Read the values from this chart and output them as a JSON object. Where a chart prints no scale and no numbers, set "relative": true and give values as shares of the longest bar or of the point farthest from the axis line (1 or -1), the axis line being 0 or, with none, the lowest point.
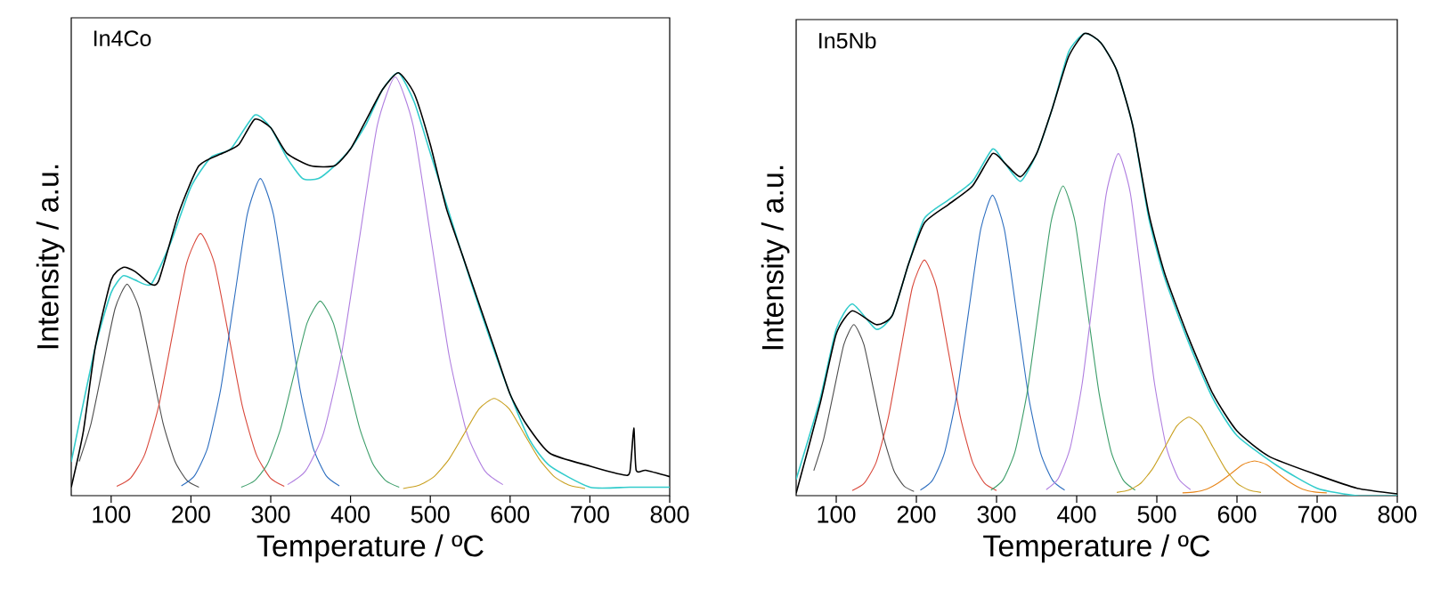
{
  "chart_data": [
    {
      "type": "line",
      "title": "In4Co",
      "xlabel": "Temperature / ºC",
      "ylabel": "Intensity / a.u.",
      "relative": true,
      "xlim": [
        50,
        800
      ],
      "xticks": [
        100,
        200,
        300,
        400,
        500,
        600,
        700,
        800
      ],
      "series": [
        {
          "color": "#4d4d4d",
          "x": [
            60,
            75,
            90,
            105,
            120,
            135,
            150,
            165,
            180,
            195,
            210
          ],
          "values": [
            0.081,
            0.172,
            0.309,
            0.443,
            0.5,
            0.443,
            0.309,
            0.172,
            0.081,
            0.036,
            0.02
          ]
        },
        {
          "color": "#d9483b",
          "x": [
            107,
            124.5,
            142,
            159.5,
            177,
            194.5,
            212,
            229.5,
            247,
            264.5,
            282,
            299.5,
            317
          ],
          "values": [
            0.022,
            0.042,
            0.097,
            0.211,
            0.382,
            0.549,
            0.62,
            0.549,
            0.382,
            0.211,
            0.097,
            0.042,
            0.022
          ]
        },
        {
          "color": "#2e6fc0",
          "x": [
            188,
            204.5,
            221,
            237.5,
            254,
            270.5,
            287,
            303.5,
            320,
            336.5,
            353,
            369.5,
            386
          ],
          "values": [
            0.023,
            0.047,
            0.114,
            0.254,
            0.461,
            0.664,
            0.75,
            0.664,
            0.461,
            0.254,
            0.114,
            0.047,
            0.023
          ]
        },
        {
          "color": "#3d9e6a",
          "x": [
            263,
            279.5,
            296,
            312.5,
            329,
            345.5,
            362,
            378.5,
            395,
            411.5,
            428,
            444.5,
            461
          ],
          "values": [
            0.02,
            0.035,
            0.075,
            0.159,
            0.285,
            0.408,
            0.46,
            0.408,
            0.285,
            0.159,
            0.075,
            0.035,
            0.02
          ]
        },
        {
          "color": "#b07fe0",
          "x": [
            321,
            343.5,
            366,
            388.5,
            411,
            433.5,
            456,
            478.5,
            501,
            523.5,
            546,
            568.5,
            591
          ],
          "values": [
            0.026,
            0.058,
            0.147,
            0.332,
            0.606,
            0.875,
            0.99,
            0.875,
            0.606,
            0.332,
            0.147,
            0.058,
            0.026
          ]
        },
        {
          "color": "#c9a020",
          "x": [
            466,
            485,
            504,
            523,
            542,
            561,
            580,
            599,
            618,
            637,
            656,
            675,
            694
          ],
          "values": [
            0.017,
            0.024,
            0.044,
            0.085,
            0.145,
            0.205,
            0.23,
            0.205,
            0.145,
            0.085,
            0.044,
            0.024,
            0.017
          ]
        },
        {
          "color": "#33cccc",
          "x": [
            50,
            80,
            100,
            115,
            130,
            150,
            175,
            200,
            225,
            250,
            280,
            300,
            320,
            340,
            360,
            380,
            400,
            420,
            440,
            460,
            480,
            500,
            525,
            550,
            575,
            600,
            625,
            650,
            700,
            750,
            800
          ],
          "values": [
            0.08,
            0.35,
            0.48,
            0.52,
            0.51,
            0.5,
            0.6,
            0.73,
            0.8,
            0.82,
            0.9,
            0.87,
            0.8,
            0.75,
            0.75,
            0.78,
            0.82,
            0.88,
            0.96,
            1.0,
            0.93,
            0.81,
            0.66,
            0.51,
            0.37,
            0.24,
            0.13,
            0.07,
            0.02,
            0.02,
            0.02
          ]
        },
        {
          "color": "#000000",
          "x": [
            50,
            65,
            80,
            100,
            115,
            130,
            150,
            160,
            185,
            210,
            240,
            260,
            280,
            300,
            320,
            350,
            380,
            400,
            420,
            440,
            460,
            480,
            500,
            520,
            540,
            560,
            580,
            600,
            620,
            650,
            700,
            740,
            750,
            755,
            758,
            770,
            800
          ],
          "values": [
            0.02,
            0.15,
            0.35,
            0.51,
            0.54,
            0.53,
            0.5,
            0.51,
            0.67,
            0.78,
            0.81,
            0.83,
            0.89,
            0.87,
            0.81,
            0.78,
            0.78,
            0.82,
            0.89,
            0.96,
            1.0,
            0.95,
            0.83,
            0.68,
            0.57,
            0.46,
            0.35,
            0.24,
            0.17,
            0.1,
            0.07,
            0.05,
            0.055,
            0.16,
            0.06,
            0.06,
            0.045
          ]
        }
      ]
    },
    {
      "type": "line",
      "title": "In5Nb",
      "xlabel": "Temperature / ºC",
      "ylabel": "Intensity / a.u.",
      "relative": true,
      "xlim": [
        50,
        800
      ],
      "xticks": [
        100,
        200,
        300,
        400,
        500,
        600,
        700,
        800
      ],
      "series": [
        {
          "color": "#4d4d4d",
          "x": [
            72,
            84.5,
            97,
            109.5,
            122,
            134.5,
            147,
            159.5,
            172,
            184.5,
            197
          ],
          "values": [
            0.054,
            0.124,
            0.226,
            0.327,
            0.37,
            0.327,
            0.226,
            0.124,
            0.054,
            0.021,
            0.009
          ]
        },
        {
          "color": "#d9483b",
          "x": [
            120,
            135,
            150,
            165,
            180,
            195,
            210,
            225,
            240,
            255,
            270,
            285,
            300
          ],
          "values": [
            0.011,
            0.027,
            0.073,
            0.169,
            0.311,
            0.451,
            0.51,
            0.451,
            0.311,
            0.169,
            0.073,
            0.027,
            0.011
          ]
        },
        {
          "color": "#2e6fc0",
          "x": [
            205,
            220,
            235,
            250,
            265,
            280,
            295,
            310,
            325,
            340,
            355,
            370,
            385
          ],
          "values": [
            0.012,
            0.033,
            0.092,
            0.214,
            0.396,
            0.574,
            0.65,
            0.574,
            0.396,
            0.214,
            0.092,
            0.033,
            0.012
          ]
        },
        {
          "color": "#3d9e6a",
          "x": [
            293,
            308,
            323,
            338,
            353,
            368,
            383,
            398,
            413,
            428,
            443,
            458,
            473
          ],
          "values": [
            0.012,
            0.034,
            0.095,
            0.221,
            0.408,
            0.592,
            0.67,
            0.592,
            0.408,
            0.221,
            0.095,
            0.034,
            0.012
          ]
        },
        {
          "color": "#b07fe0",
          "x": [
            362,
            377,
            392,
            407,
            422,
            437,
            452,
            467,
            482,
            497,
            512,
            527,
            542
          ],
          "values": [
            0.013,
            0.037,
            0.104,
            0.244,
            0.451,
            0.654,
            0.74,
            0.654,
            0.451,
            0.244,
            0.104,
            0.037,
            0.013
          ]
        },
        {
          "color": "#c9a020",
          "x": [
            450,
            465,
            480,
            495,
            510,
            525,
            540,
            555,
            570,
            585,
            600,
            615,
            630
          ],
          "values": [
            0.007,
            0.012,
            0.027,
            0.059,
            0.105,
            0.151,
            0.17,
            0.151,
            0.105,
            0.059,
            0.027,
            0.012,
            0.007
          ]
        },
        {
          "color": "#e8861a",
          "x": [
            532,
            547,
            562,
            577,
            592,
            607,
            622,
            637,
            652,
            667,
            682,
            697,
            712
          ],
          "values": [
            0.006,
            0.008,
            0.014,
            0.028,
            0.047,
            0.067,
            0.075,
            0.067,
            0.047,
            0.028,
            0.014,
            0.008,
            0.006
          ]
        },
        {
          "color": "#33cccc",
          "x": [
            50,
            80,
            100,
            120,
            150,
            170,
            190,
            210,
            240,
            270,
            295,
            310,
            330,
            350,
            370,
            390,
            410,
            430,
            450,
            470,
            490,
            510,
            540,
            570,
            600,
            650,
            700,
            750,
            800
          ],
          "values": [
            0.035,
            0.21,
            0.36,
            0.415,
            0.36,
            0.39,
            0.5,
            0.6,
            0.64,
            0.68,
            0.75,
            0.72,
            0.68,
            0.74,
            0.84,
            0.96,
            1.0,
            0.98,
            0.92,
            0.8,
            0.6,
            0.47,
            0.33,
            0.21,
            0.13,
            0.065,
            0.016,
            0.0,
            0.0
          ]
        },
        {
          "color": "#000000",
          "x": [
            50,
            80,
            100,
            120,
            150,
            170,
            190,
            210,
            240,
            270,
            295,
            310,
            330,
            350,
            370,
            390,
            410,
            430,
            450,
            470,
            490,
            510,
            540,
            570,
            600,
            640,
            700,
            750,
            800
          ],
          "values": [
            0.005,
            0.2,
            0.35,
            0.4,
            0.37,
            0.39,
            0.5,
            0.59,
            0.63,
            0.67,
            0.74,
            0.72,
            0.69,
            0.74,
            0.84,
            0.95,
            1.0,
            0.98,
            0.92,
            0.8,
            0.61,
            0.48,
            0.34,
            0.22,
            0.14,
            0.085,
            0.045,
            0.016,
            0.004
          ]
        }
      ]
    }
  ]
}
